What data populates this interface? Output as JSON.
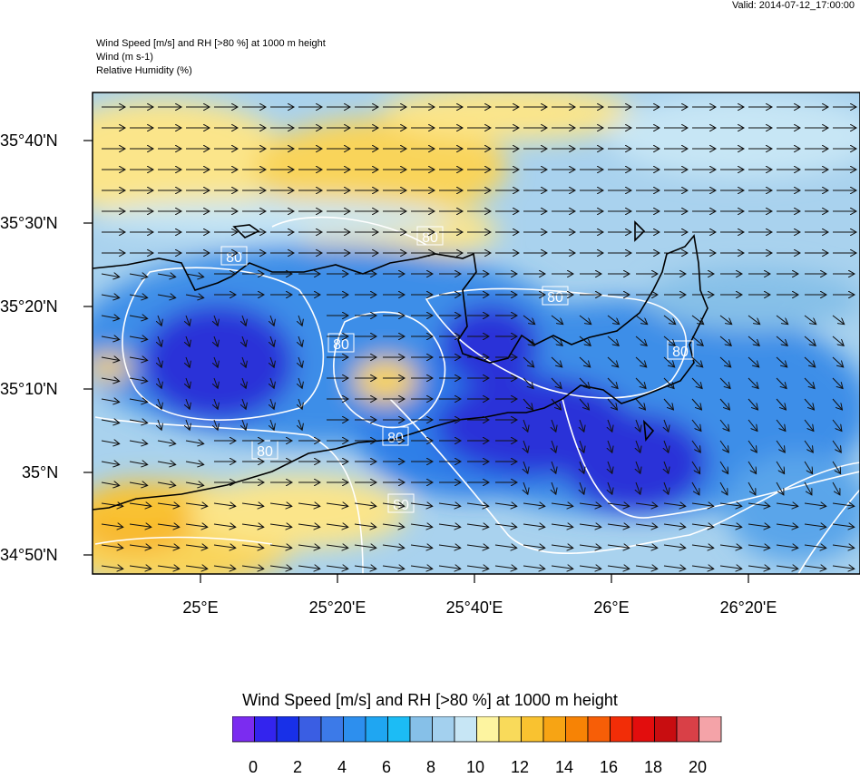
{
  "valid_text": "Valid: 2014-07-12_17:00:00",
  "header": {
    "line1": "Wind Speed [m/s] and RH [>80 %] at 1000 m height",
    "line2": "Wind   (m s-1)",
    "line3": "Relative Humidity   (%)"
  },
  "map": {
    "lat_labels": [
      "35°40'N",
      "35°30'N",
      "35°20'N",
      "35°10'N",
      "35°N",
      "34°50'N"
    ],
    "lon_labels": [
      "25°E",
      "25°20'E",
      "25°40'E",
      "26°E",
      "26°20'E"
    ],
    "contour_labels": [
      "80",
      "80",
      "80",
      "80",
      "80",
      "80",
      "80",
      "80"
    ],
    "wind_direction": "west-to-east"
  },
  "colorbar": {
    "title": "Wind Speed [m/s] and RH [>80 %] at 1000 m height",
    "tick_labels": [
      "0",
      "2",
      "4",
      "6",
      "8",
      "10",
      "12",
      "14",
      "16",
      "18",
      "20"
    ],
    "colors": [
      "#7b2cf0",
      "#3324ee",
      "#1830e8",
      "#3a5ee3",
      "#3c7ae8",
      "#2d8fee",
      "#1fa6f2",
      "#1cbcf5",
      "#86c0e8",
      "#a3d0ee",
      "#c7e6f5",
      "#fdf4a0",
      "#f9da5a",
      "#f9c230",
      "#f7a414",
      "#f78305",
      "#f75e07",
      "#f22d07",
      "#e20d0d",
      "#c80d10",
      "#d94047",
      "#f4a3a8"
    ]
  }
}
